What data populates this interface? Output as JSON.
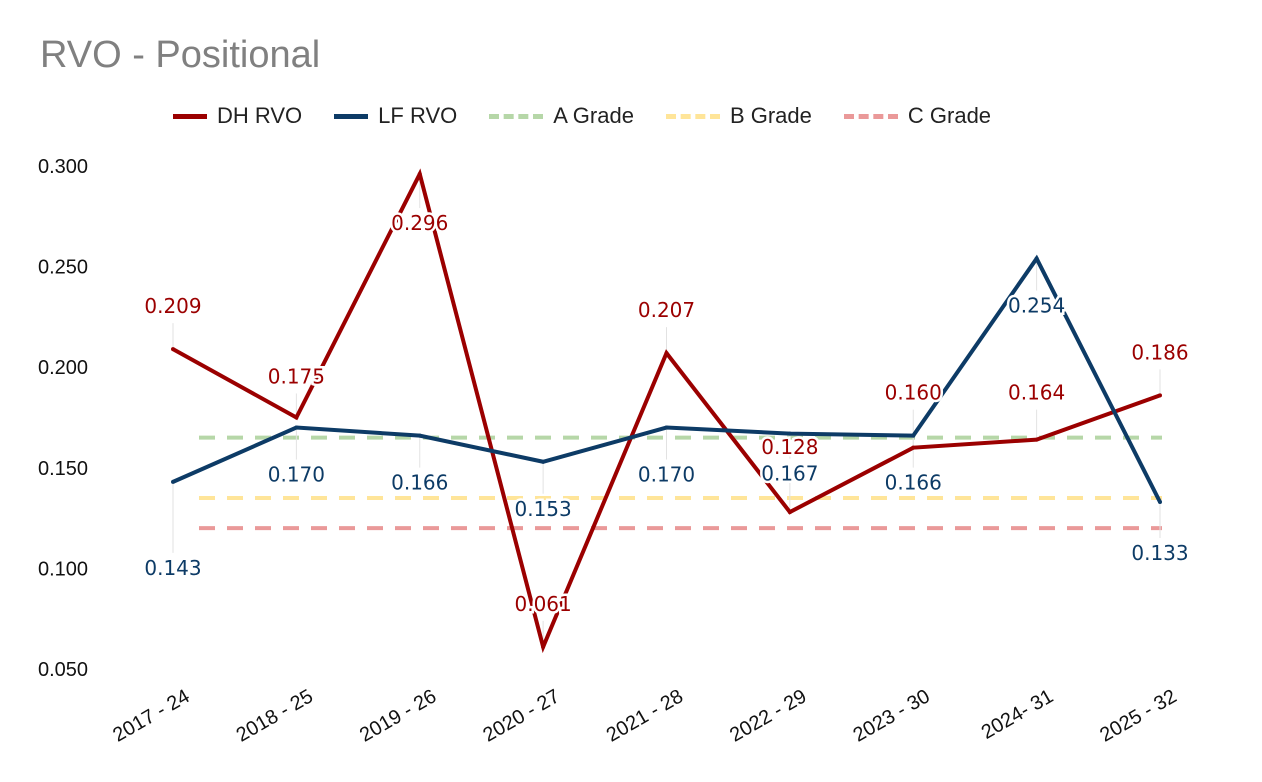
{
  "chart_data": {
    "type": "line",
    "title": "RVO - Positional",
    "xlabel": "",
    "ylabel": "",
    "ylim": [
      0.05,
      0.3
    ],
    "yticks": [
      "0.050",
      "0.100",
      "0.150",
      "0.200",
      "0.250",
      "0.300"
    ],
    "categories": [
      "2017 - 24",
      "2018 - 25",
      "2019 - 26",
      "2020 - 27",
      "2021 - 28",
      "2022 - 29",
      "2023 - 30",
      "2024- 31",
      "2025 - 32"
    ],
    "series": [
      {
        "name": "DH RVO",
        "color": "#9b0000",
        "style": "solid",
        "values": [
          0.209,
          0.175,
          0.296,
          0.061,
          0.207,
          0.128,
          0.16,
          0.164,
          0.186
        ],
        "labels": [
          "0.209",
          "0.175",
          "0.296",
          "0.061",
          "0.207",
          "0.128",
          "0.160",
          "0.164",
          "0.186"
        ]
      },
      {
        "name": "LF RVO",
        "color": "#0d3b66",
        "style": "solid",
        "values": [
          0.143,
          0.17,
          0.166,
          0.153,
          0.17,
          0.167,
          0.166,
          0.254,
          0.133
        ],
        "labels": [
          "0.143",
          "0.170",
          "0.166",
          "0.153",
          "0.170",
          "0.167",
          "0.166",
          "0.254",
          "0.133"
        ]
      }
    ],
    "reference_lines": [
      {
        "name": "A Grade",
        "value": 0.165,
        "color": "#b6d7a8",
        "style": "dashed"
      },
      {
        "name": "B Grade",
        "value": 0.135,
        "color": "#ffe599",
        "style": "dashed"
      },
      {
        "name": "C Grade",
        "value": 0.12,
        "color": "#ea9999",
        "style": "dashed"
      }
    ],
    "legend": "top",
    "grid": false
  }
}
